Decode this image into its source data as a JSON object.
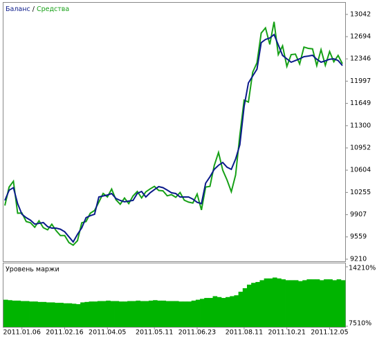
{
  "chart_data": [
    {
      "type": "line",
      "legend_separator": "/",
      "categories": [
        null,
        null,
        null,
        null,
        "2011.01.06",
        null,
        null,
        null,
        null,
        null,
        null,
        null,
        null,
        null,
        "2011.02.16",
        null,
        null,
        null,
        null,
        null,
        null,
        null,
        null,
        null,
        "2011.04.05",
        null,
        null,
        null,
        null,
        null,
        null,
        null,
        null,
        null,
        null,
        "2011.05.11",
        null,
        null,
        null,
        null,
        null,
        null,
        null,
        null,
        null,
        "2011.06.23",
        null,
        null,
        null,
        null,
        null,
        null,
        null,
        null,
        null,
        null,
        "2011.08.11",
        null,
        null,
        null,
        null,
        null,
        null,
        null,
        null,
        null,
        "2011.10.21",
        null,
        null,
        null,
        null,
        null,
        null,
        null,
        null,
        null,
        "2011.12.05",
        null,
        null,
        null
      ],
      "series": [
        {
          "name": "Баланс",
          "color": "#0a1a8a",
          "values": [
            10130,
            10290,
            10330,
            10080,
            9913,
            9860,
            9820,
            9760,
            9770,
            9783,
            9720,
            9697,
            9697,
            9680,
            9640,
            9560,
            9480,
            9600,
            9700,
            9860,
            9890,
            9913,
            10184,
            10200,
            10215,
            10238,
            10160,
            10130,
            10108,
            10120,
            10130,
            10240,
            10270,
            10184,
            10250,
            10300,
            10346,
            10330,
            10292,
            10250,
            10238,
            10184,
            10184,
            10184,
            10150,
            10100,
            10080,
            10400,
            10500,
            10616,
            10680,
            10724,
            10650,
            10616,
            10779,
            11000,
            11600,
            11969,
            12077,
            12185,
            12600,
            12650,
            12672,
            12726,
            12564,
            12400,
            12347,
            12293,
            12320,
            12347,
            12380,
            12390,
            12402,
            12340,
            12293,
            12315,
            12340,
            12347,
            12320,
            12240
          ]
        },
        {
          "name": "Средства",
          "color": "#16a016",
          "values": [
            10050,
            10340,
            10430,
            9930,
            9933,
            9800,
            9780,
            9710,
            9810,
            9703,
            9670,
            9757,
            9657,
            9580,
            9580,
            9470,
            9430,
            9500,
            9780,
            9800,
            9930,
            9973,
            10104,
            10240,
            10185,
            10308,
            10140,
            10070,
            10168,
            10080,
            10200,
            10270,
            10170,
            10264,
            10310,
            10350,
            10286,
            10280,
            10202,
            10220,
            10178,
            10254,
            10134,
            10104,
            10090,
            10230,
            9980,
            10340,
            10350,
            10676,
            10880,
            10604,
            10450,
            10266,
            10529,
            11150,
            11700,
            11669,
            12137,
            12285,
            12750,
            12830,
            12572,
            12926,
            12414,
            12550,
            12227,
            12413,
            12420,
            12267,
            12530,
            12510,
            12502,
            12240,
            12490,
            12245,
            12460,
            12300,
            12400,
            12270
          ]
        }
      ],
      "ylim": [
        9210,
        13224
      ],
      "yticks": [
        9210,
        9559,
        9907,
        10255,
        10604,
        10952,
        11300,
        11649,
        11997,
        12346,
        12694,
        13042
      ]
    },
    {
      "type": "bar",
      "title": "Уровень маржи",
      "color": "#00b400",
      "values": [
        10500,
        10450,
        10400,
        10400,
        10350,
        10350,
        10300,
        10300,
        10250,
        10250,
        10200,
        10200,
        10150,
        10150,
        10100,
        10100,
        10050,
        10000,
        10200,
        10250,
        10300,
        10300,
        10350,
        10350,
        10400,
        10350,
        10350,
        10300,
        10300,
        10350,
        10350,
        10400,
        10350,
        10350,
        10400,
        10450,
        10400,
        10400,
        10350,
        10350,
        10350,
        10300,
        10300,
        10300,
        10400,
        10500,
        10600,
        10700,
        10700,
        10900,
        10800,
        10700,
        10800,
        10900,
        11000,
        11400,
        11800,
        12200,
        12400,
        12500,
        12700,
        12900,
        12900,
        13000,
        12900,
        12800,
        12700,
        12700,
        12700,
        12600,
        12700,
        12800,
        12800,
        12800,
        12700,
        12800,
        12800,
        12700,
        12800,
        12700
      ],
      "ylim": [
        7510,
        14210
      ],
      "yticks": [
        {
          "value": 7510,
          "label": "7510%"
        },
        {
          "value": 14210,
          "label": "14210%"
        }
      ]
    }
  ]
}
